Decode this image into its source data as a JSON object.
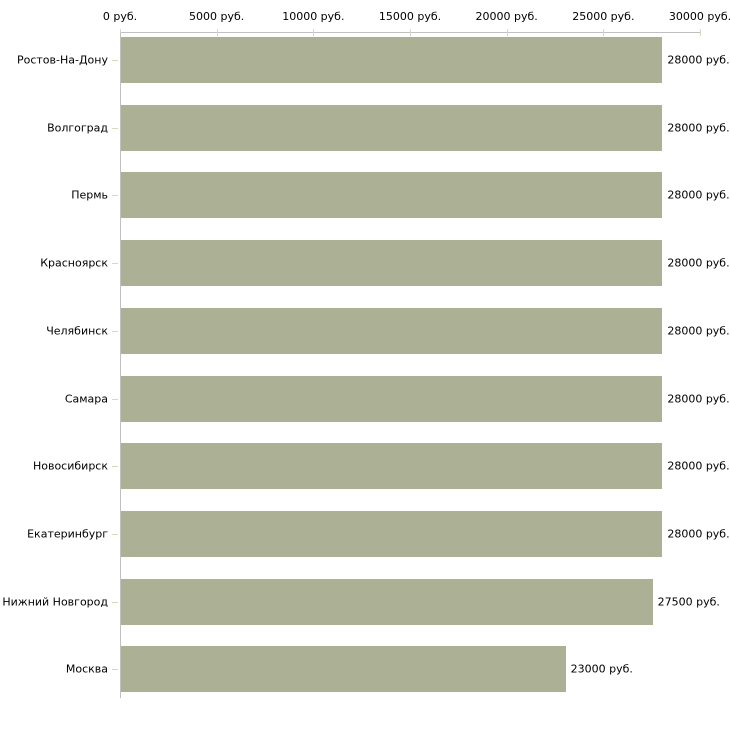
{
  "chart_data": {
    "type": "bar",
    "orientation": "horizontal",
    "title": "",
    "xlabel": "",
    "ylabel": "",
    "unit": "руб.",
    "grid": false,
    "legend": null,
    "xlim": [
      0,
      30000
    ],
    "x_ticks": [
      0,
      5000,
      10000,
      15000,
      20000,
      25000,
      30000
    ],
    "x_tick_labels": [
      "0 руб.",
      "5000 руб.",
      "10000 руб.",
      "15000 руб.",
      "20000 руб.",
      "25000 руб.",
      "30000 руб."
    ],
    "categories": [
      "Ростов-На-Дону",
      "Волгоград",
      "Пермь",
      "Красноярск",
      "Челябинск",
      "Самара",
      "Новосибирск",
      "Екатеринбург",
      "Нижний Новгород",
      "Москва"
    ],
    "values": [
      28000,
      28000,
      28000,
      28000,
      28000,
      28000,
      28000,
      28000,
      27500,
      23000
    ],
    "value_labels": [
      "28000 руб.",
      "28000 руб.",
      "28000 руб.",
      "28000 руб.",
      "28000 руб.",
      "28000 руб.",
      "28000 руб.",
      "28000 руб.",
      "27500 руб.",
      "23000 руб."
    ],
    "bar_color": "#acb195",
    "axis_color": "#c0c0c0",
    "tick_mark_color": "#d9d6c2",
    "text_color": "#000000"
  }
}
